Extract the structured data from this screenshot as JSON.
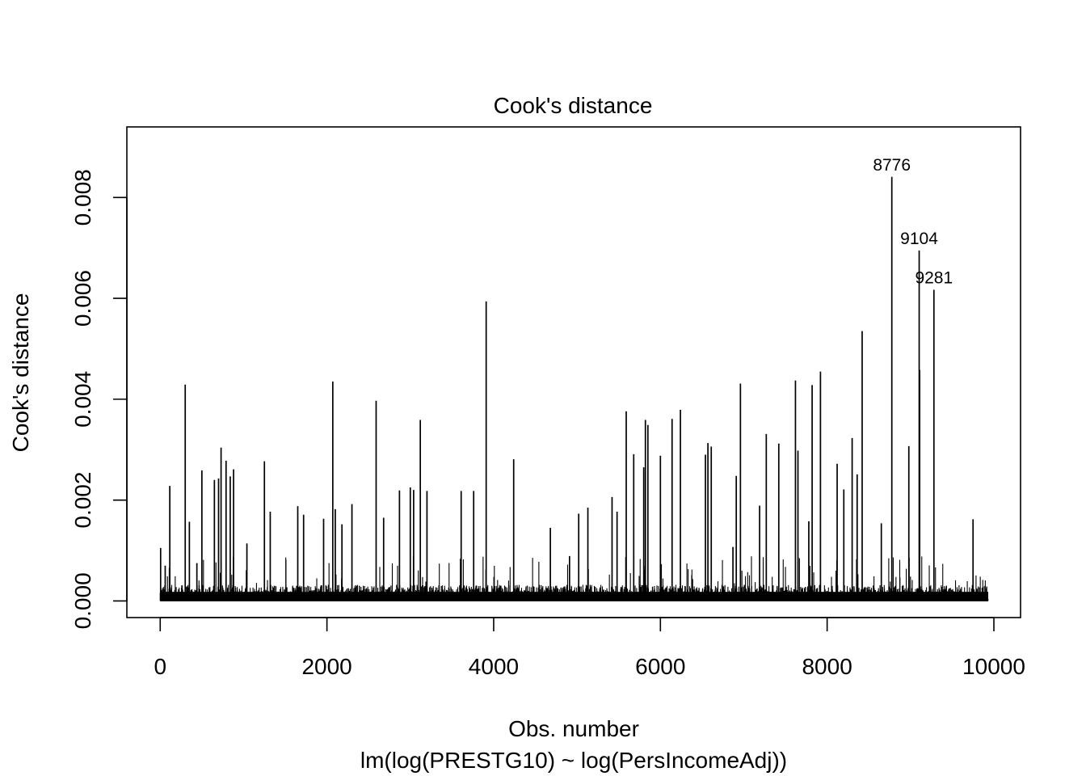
{
  "chart_data": {
    "type": "bar",
    "title": "Cook's distance",
    "xlabel": "Obs. number",
    "subtitle": "lm(log(PRESTG10) ~ log(PersIncomeAdj))",
    "ylabel": "Cook's distance",
    "n_obs": 9932,
    "xlim": [
      -400,
      10320
    ],
    "ylim": [
      -0.00033,
      0.0094
    ],
    "x_ticks": [
      0,
      2000,
      4000,
      6000,
      8000,
      10000
    ],
    "x_tick_labels": [
      "0",
      "2000",
      "4000",
      "6000",
      "8000",
      "10000"
    ],
    "y_ticks": [
      0.0,
      0.002,
      0.004,
      0.006,
      0.008
    ],
    "y_tick_labels": [
      "0.000",
      "0.002",
      "0.004",
      "0.006",
      "0.008"
    ],
    "peaks": [
      {
        "x": 5,
        "y": 0.00105
      },
      {
        "x": 60,
        "y": 0.0007
      },
      {
        "x": 115,
        "y": 0.00228
      },
      {
        "x": 300,
        "y": 0.00429
      },
      {
        "x": 350,
        "y": 0.00157
      },
      {
        "x": 440,
        "y": 0.00075
      },
      {
        "x": 500,
        "y": 0.00259
      },
      {
        "x": 650,
        "y": 0.0024
      },
      {
        "x": 700,
        "y": 0.00243
      },
      {
        "x": 730,
        "y": 0.00304
      },
      {
        "x": 790,
        "y": 0.00278
      },
      {
        "x": 840,
        "y": 0.00247
      },
      {
        "x": 880,
        "y": 0.00261
      },
      {
        "x": 1040,
        "y": 0.00114
      },
      {
        "x": 1250,
        "y": 0.00277
      },
      {
        "x": 1320,
        "y": 0.00177
      },
      {
        "x": 1650,
        "y": 0.00188
      },
      {
        "x": 1720,
        "y": 0.00171
      },
      {
        "x": 1960,
        "y": 0.00163
      },
      {
        "x": 2070,
        "y": 0.00435
      },
      {
        "x": 2100,
        "y": 0.00182
      },
      {
        "x": 2180,
        "y": 0.00152
      },
      {
        "x": 2300,
        "y": 0.00192
      },
      {
        "x": 2590,
        "y": 0.00397
      },
      {
        "x": 2680,
        "y": 0.00165
      },
      {
        "x": 2870,
        "y": 0.00219
      },
      {
        "x": 3000,
        "y": 0.00225
      },
      {
        "x": 3040,
        "y": 0.0022
      },
      {
        "x": 3120,
        "y": 0.00359
      },
      {
        "x": 3200,
        "y": 0.00218
      },
      {
        "x": 3610,
        "y": 0.00218
      },
      {
        "x": 3760,
        "y": 0.00218
      },
      {
        "x": 3910,
        "y": 0.00594
      },
      {
        "x": 4240,
        "y": 0.00281
      },
      {
        "x": 4680,
        "y": 0.00145
      },
      {
        "x": 4910,
        "y": 0.00089
      },
      {
        "x": 5020,
        "y": 0.00173
      },
      {
        "x": 5130,
        "y": 0.00185
      },
      {
        "x": 5420,
        "y": 0.00206
      },
      {
        "x": 5480,
        "y": 0.00177
      },
      {
        "x": 5590,
        "y": 0.00376
      },
      {
        "x": 5680,
        "y": 0.00291
      },
      {
        "x": 5800,
        "y": 0.00265
      },
      {
        "x": 5820,
        "y": 0.00359
      },
      {
        "x": 5850,
        "y": 0.00349
      },
      {
        "x": 6000,
        "y": 0.00288
      },
      {
        "x": 6140,
        "y": 0.00361
      },
      {
        "x": 6240,
        "y": 0.00379
      },
      {
        "x": 6540,
        "y": 0.0029
      },
      {
        "x": 6570,
        "y": 0.00313
      },
      {
        "x": 6610,
        "y": 0.00306
      },
      {
        "x": 6870,
        "y": 0.00107
      },
      {
        "x": 6910,
        "y": 0.00248
      },
      {
        "x": 6960,
        "y": 0.00431
      },
      {
        "x": 7190,
        "y": 0.00189
      },
      {
        "x": 7270,
        "y": 0.00331
      },
      {
        "x": 7420,
        "y": 0.00312
      },
      {
        "x": 7620,
        "y": 0.00437
      },
      {
        "x": 7650,
        "y": 0.00298
      },
      {
        "x": 7780,
        "y": 0.00158
      },
      {
        "x": 7820,
        "y": 0.00428
      },
      {
        "x": 7920,
        "y": 0.00455
      },
      {
        "x": 8120,
        "y": 0.00272
      },
      {
        "x": 8200,
        "y": 0.00221
      },
      {
        "x": 8300,
        "y": 0.00323
      },
      {
        "x": 8360,
        "y": 0.00251
      },
      {
        "x": 8420,
        "y": 0.00535
      },
      {
        "x": 8650,
        "y": 0.00154
      },
      {
        "x": 8776,
        "y": 0.00841
      },
      {
        "x": 8980,
        "y": 0.00307
      },
      {
        "x": 9104,
        "y": 0.00695
      },
      {
        "x": 9110,
        "y": 0.00458
      },
      {
        "x": 9281,
        "y": 0.00617
      },
      {
        "x": 9750,
        "y": 0.00162
      }
    ],
    "labeled_points": [
      {
        "label": "8776",
        "x": 8776,
        "y": 0.00841
      },
      {
        "label": "9104",
        "x": 9104,
        "y": 0.00695
      },
      {
        "label": "9281",
        "x": 9281,
        "y": 0.00617
      }
    ]
  }
}
